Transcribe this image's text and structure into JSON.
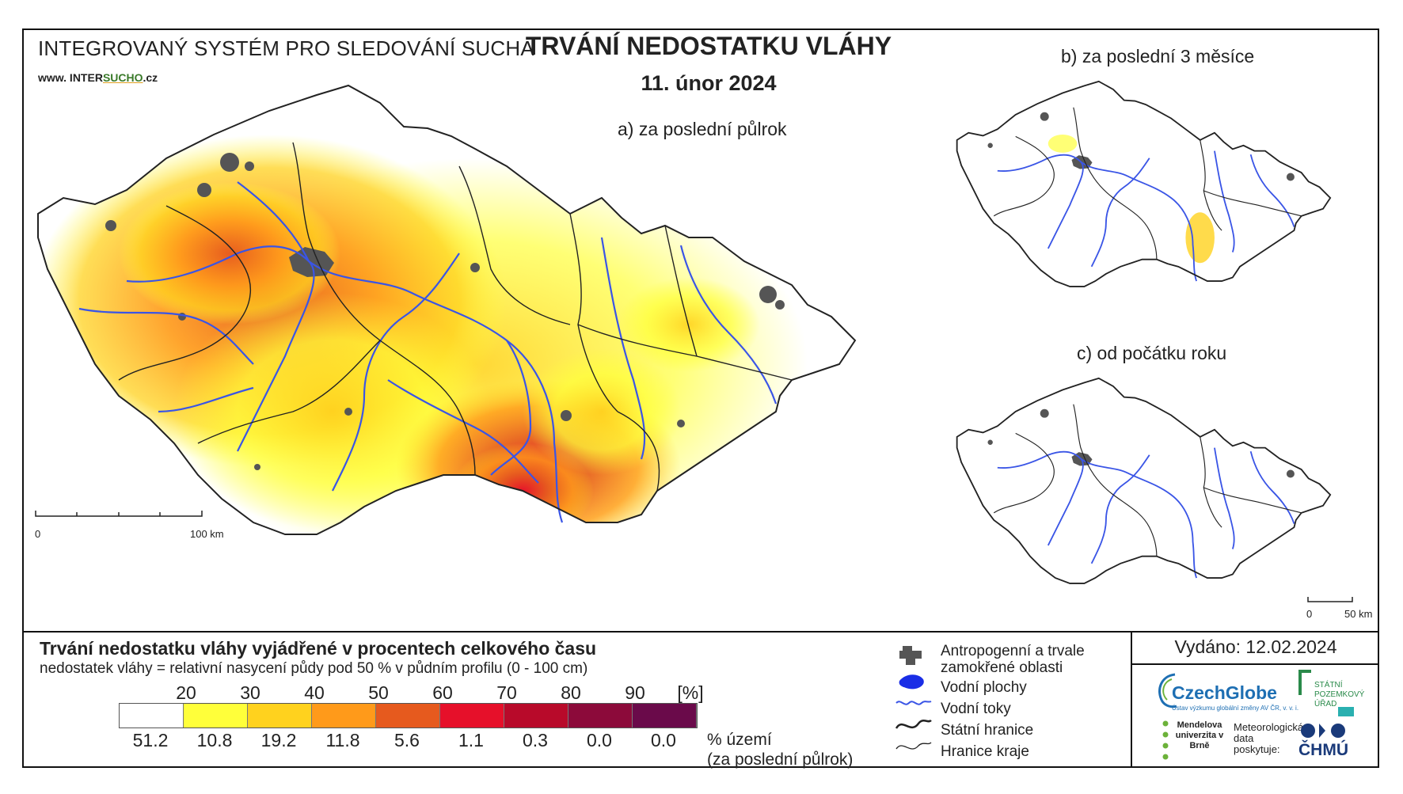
{
  "header": {
    "organization": "INTEGROVANÝ SYSTÉM PRO SLEDOVÁNÍ SUCHA",
    "website_prefix": "www. INTER",
    "website_brand": "SUCHO",
    "website_suffix": ".cz",
    "title": "TRVÁNÍ NEDOSTATKU VLÁHY",
    "date": "11. únor 2024"
  },
  "maps": {
    "a_label": "a) za poslední půlrok",
    "b_label": "b) za poslední 3 měsíce",
    "c_label": "c) od počátku roku",
    "scale_main": {
      "zero": "0",
      "end": "100 km"
    },
    "scale_small": {
      "zero": "0",
      "end": "50 km"
    }
  },
  "legend": {
    "title": "Trvání nedostatku vláhy vyjádřené v procentech celkového času",
    "subtitle": "nedostatek vláhy = relativní nasycení půdy pod 50 % v půdním profilu (0 - 100 cm)",
    "thresholds": [
      "20",
      "30",
      "40",
      "50",
      "60",
      "70",
      "80",
      "90"
    ],
    "unit": "[%]",
    "colors": [
      "#ffffff",
      "#ffff3a",
      "#ffd21e",
      "#ff9a1a",
      "#e65a1e",
      "#e6102a",
      "#b80a2a",
      "#8c0a3a",
      "#6a0a4a"
    ],
    "percentages": [
      "51.2",
      "10.8",
      "19.2",
      "11.8",
      "5.6",
      "1.1",
      "0.3",
      "0.0",
      "0.0"
    ],
    "percent_label": "% území",
    "percent_sub": "(za poslední půlrok)"
  },
  "symbols": {
    "urban": "Antropogenní a trvale zamokřené oblasti",
    "water_bodies": "Vodní plochy",
    "rivers": "Vodní toky",
    "state_border": "Státní hranice",
    "region_border": "Hranice kraje"
  },
  "footer": {
    "issued": "Vydáno: 12.02.2024",
    "czechglobe": "CzechGlobe",
    "czechglobe_small": "Ústav výzkumu globální změny AV ČR, v. v. i.",
    "spu": "STÁTNÍ POZEMKOVÝ ÚŘAD",
    "mendel": "Mendelova univerzita v Brně",
    "meteo": "Meteorologická data poskytuje:",
    "chmu": "ČHMÚ"
  },
  "map_colors": {
    "urban": "#555555",
    "river": "#3a55e6",
    "border": "#222222"
  }
}
